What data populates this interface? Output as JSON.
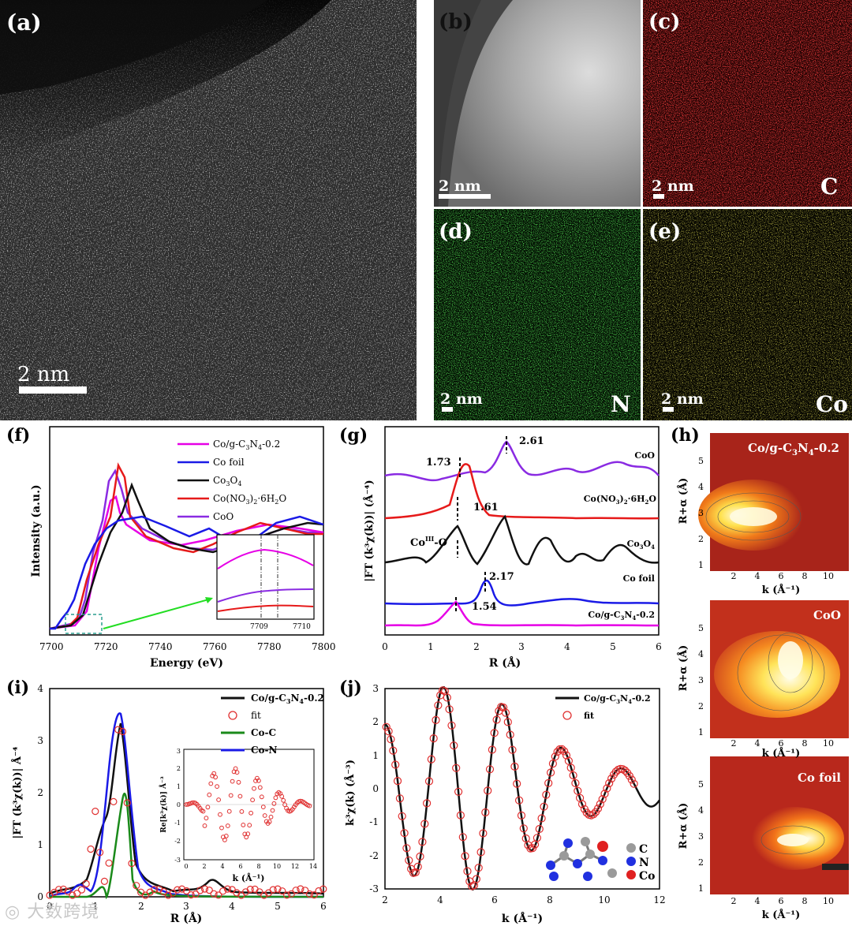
{
  "panels": {
    "a": {
      "label": "(a)",
      "scale": "2 nm"
    },
    "b": {
      "label": "(b)",
      "scale": "2 nm"
    },
    "c": {
      "label": "(c)",
      "scale": "2 nm",
      "element": "C"
    },
    "d": {
      "label": "(d)",
      "scale": "2 nm",
      "element": "N"
    },
    "e": {
      "label": "(e)",
      "scale": "2 nm",
      "element": "Co"
    }
  },
  "watermark": "大数跨境",
  "chart_data": [
    {
      "panel": "(f)",
      "type": "line",
      "xlabel": "Energy (eV)",
      "ylabel": "Intensity (a.u.)",
      "xlim": [
        7700,
        7800
      ],
      "xticks": [
        "7700",
        "7720",
        "7740",
        "7760",
        "7780",
        "7800"
      ],
      "legend": [
        "Co/g-C3N4-0.2",
        "Co foil",
        "Co3O4",
        "Co(NO3)2·6H2O",
        "CoO"
      ],
      "inset": {
        "xticks": [
          "7709",
          "7710"
        ]
      },
      "colors": [
        "#e600e6",
        "#1a1ae6",
        "#111111",
        "#e61a1a",
        "#8a2be2"
      ]
    },
    {
      "panel": "(g)",
      "type": "line",
      "xlabel": "R (Å)",
      "ylabel": "|FT (k³χ(k))| (Å⁻⁴)",
      "xlim": [
        0,
        6
      ],
      "xticks": [
        "0",
        "1",
        "2",
        "3",
        "4",
        "5",
        "6"
      ],
      "labels": [
        "CoO",
        "Co(NO3)2·6H2O",
        "Co3O4",
        "Co foil",
        "Co/g-C3N4-0.2"
      ],
      "annotations": [
        "1.73",
        "2.61",
        "1.61",
        "CoIII-O",
        "2.17",
        "1.54"
      ]
    },
    {
      "panel": "(h)",
      "type": "heatmap",
      "xlabel": "k (Å⁻¹)",
      "ylabel": "R+α (Å)",
      "xticks": [
        "2",
        "4",
        "6",
        "8",
        "10"
      ],
      "yticks": [
        "1",
        "2",
        "3",
        "4",
        "5"
      ],
      "titles": [
        "Co/g-C3N4-0.2",
        "CoO",
        "Co foil"
      ]
    },
    {
      "panel": "(i)",
      "type": "line",
      "xlabel": "R (Å)",
      "ylabel": "|FT (k³χ(k))| Å⁻⁴",
      "xlim": [
        0,
        6
      ],
      "ylim": [
        0,
        4
      ],
      "xticks": [
        "0",
        "1",
        "2",
        "3",
        "4",
        "5",
        "6"
      ],
      "yticks": [
        "0",
        "1",
        "2",
        "3",
        "4"
      ],
      "legend": [
        "Co/g-C3N4-0.2",
        "fit",
        "Co-C",
        "Co-N"
      ],
      "inset": {
        "xlabel": "k (Å⁻¹)",
        "ylabel": "Re[k³χ(k)] Å⁻³",
        "xticks": [
          "0",
          "2",
          "4",
          "6",
          "8",
          "10",
          "12",
          "14"
        ],
        "yticks": [
          "-3",
          "-2",
          "-1",
          "0",
          "1",
          "2",
          "3"
        ]
      }
    },
    {
      "panel": "(j)",
      "type": "line",
      "xlabel": "k (Å⁻¹)",
      "ylabel": "k³χ(k) (Å⁻³)",
      "xlim": [
        2,
        12
      ],
      "ylim": [
        -3,
        3
      ],
      "xticks": [
        "2",
        "4",
        "6",
        "8",
        "10",
        "12"
      ],
      "yticks": [
        "-3",
        "-2",
        "-1",
        "0",
        "1",
        "2",
        "3"
      ],
      "legend": [
        "Co/g-C3N4-0.2",
        "fit"
      ],
      "atoms": [
        "C",
        "N",
        "Co"
      ]
    }
  ]
}
